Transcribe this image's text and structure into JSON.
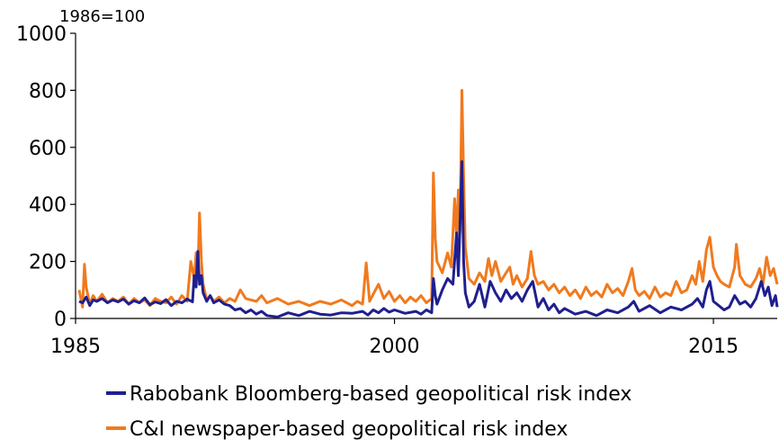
{
  "chart_data": {
    "type": "line",
    "unit_label": "1986=100",
    "ylim": [
      0,
      1000
    ],
    "xlim": [
      1985,
      2018
    ],
    "yticks": [
      "0",
      "200",
      "400",
      "600",
      "800",
      "1000"
    ],
    "ytick_values": [
      0,
      200,
      400,
      600,
      800,
      1000
    ],
    "xticks": [
      "1985",
      "2000",
      "2015"
    ],
    "xtick_values": [
      1985,
      2000,
      2015
    ],
    "grid": false,
    "legend_position": "bottom",
    "series": [
      {
        "name": "Rabobank Bloomberg-based geopolitical risk index",
        "color": "#1F1F8F",
        "points": [
          [
            1985.17,
            60
          ],
          [
            1985.33,
            55
          ],
          [
            1985.5,
            75
          ],
          [
            1985.67,
            45
          ],
          [
            1985.83,
            65
          ],
          [
            1986.0,
            60
          ],
          [
            1986.25,
            70
          ],
          [
            1986.5,
            55
          ],
          [
            1986.75,
            65
          ],
          [
            1987.0,
            58
          ],
          [
            1987.25,
            68
          ],
          [
            1987.5,
            50
          ],
          [
            1987.75,
            62
          ],
          [
            1988.0,
            55
          ],
          [
            1988.25,
            72
          ],
          [
            1988.5,
            48
          ],
          [
            1988.75,
            58
          ],
          [
            1989.0,
            52
          ],
          [
            1989.25,
            66
          ],
          [
            1989.5,
            45
          ],
          [
            1989.75,
            60
          ],
          [
            1990.0,
            55
          ],
          [
            1990.25,
            68
          ],
          [
            1990.5,
            58
          ],
          [
            1990.58,
            150
          ],
          [
            1990.67,
            110
          ],
          [
            1990.75,
            235
          ],
          [
            1990.83,
            120
          ],
          [
            1990.92,
            150
          ],
          [
            1991.0,
            90
          ],
          [
            1991.17,
            60
          ],
          [
            1991.33,
            80
          ],
          [
            1991.5,
            55
          ],
          [
            1991.75,
            65
          ],
          [
            1992.0,
            50
          ],
          [
            1992.25,
            45
          ],
          [
            1992.5,
            30
          ],
          [
            1992.75,
            35
          ],
          [
            1993.0,
            20
          ],
          [
            1993.25,
            30
          ],
          [
            1993.5,
            15
          ],
          [
            1993.75,
            25
          ],
          [
            1994.0,
            10
          ],
          [
            1994.5,
            5
          ],
          [
            1995.0,
            20
          ],
          [
            1995.5,
            10
          ],
          [
            1996.0,
            25
          ],
          [
            1996.5,
            15
          ],
          [
            1997.0,
            12
          ],
          [
            1997.5,
            20
          ],
          [
            1998.0,
            18
          ],
          [
            1998.5,
            25
          ],
          [
            1998.75,
            12
          ],
          [
            1999.0,
            30
          ],
          [
            1999.25,
            20
          ],
          [
            1999.5,
            35
          ],
          [
            1999.75,
            22
          ],
          [
            2000.0,
            30
          ],
          [
            2000.5,
            18
          ],
          [
            2001.0,
            25
          ],
          [
            2001.25,
            15
          ],
          [
            2001.5,
            30
          ],
          [
            2001.75,
            20
          ],
          [
            2001.83,
            140
          ],
          [
            2001.92,
            80
          ],
          [
            2002.0,
            50
          ],
          [
            2002.25,
            100
          ],
          [
            2002.5,
            140
          ],
          [
            2002.75,
            120
          ],
          [
            2002.92,
            300
          ],
          [
            2003.0,
            150
          ],
          [
            2003.08,
            320
          ],
          [
            2003.17,
            550
          ],
          [
            2003.25,
            200
          ],
          [
            2003.33,
            90
          ],
          [
            2003.5,
            40
          ],
          [
            2003.75,
            60
          ],
          [
            2004.0,
            120
          ],
          [
            2004.25,
            40
          ],
          [
            2004.5,
            130
          ],
          [
            2004.75,
            90
          ],
          [
            2005.0,
            60
          ],
          [
            2005.25,
            100
          ],
          [
            2005.5,
            70
          ],
          [
            2005.75,
            90
          ],
          [
            2006.0,
            60
          ],
          [
            2006.25,
            100
          ],
          [
            2006.5,
            130
          ],
          [
            2006.75,
            40
          ],
          [
            2007.0,
            70
          ],
          [
            2007.25,
            30
          ],
          [
            2007.5,
            50
          ],
          [
            2007.75,
            20
          ],
          [
            2008.0,
            35
          ],
          [
            2008.5,
            15
          ],
          [
            2009.0,
            25
          ],
          [
            2009.5,
            10
          ],
          [
            2010.0,
            30
          ],
          [
            2010.5,
            20
          ],
          [
            2011.0,
            40
          ],
          [
            2011.25,
            60
          ],
          [
            2011.5,
            25
          ],
          [
            2012.0,
            45
          ],
          [
            2012.5,
            20
          ],
          [
            2013.0,
            40
          ],
          [
            2013.5,
            30
          ],
          [
            2014.0,
            50
          ],
          [
            2014.25,
            70
          ],
          [
            2014.5,
            40
          ],
          [
            2014.67,
            100
          ],
          [
            2014.83,
            130
          ],
          [
            2015.0,
            60
          ],
          [
            2015.25,
            45
          ],
          [
            2015.5,
            30
          ],
          [
            2015.75,
            40
          ],
          [
            2016.0,
            80
          ],
          [
            2016.25,
            50
          ],
          [
            2016.5,
            60
          ],
          [
            2016.75,
            40
          ],
          [
            2017.0,
            70
          ],
          [
            2017.25,
            130
          ],
          [
            2017.42,
            80
          ],
          [
            2017.58,
            110
          ],
          [
            2017.75,
            45
          ],
          [
            2017.92,
            80
          ],
          [
            2018.0,
            40
          ]
        ]
      },
      {
        "name": "C&I newspaper-based geopolitical risk index",
        "color": "#F07A1E",
        "points": [
          [
            1985.17,
            100
          ],
          [
            1985.33,
            40
          ],
          [
            1985.42,
            190
          ],
          [
            1985.5,
            110
          ],
          [
            1985.67,
            50
          ],
          [
            1985.83,
            80
          ],
          [
            1986.0,
            60
          ],
          [
            1986.25,
            85
          ],
          [
            1986.5,
            55
          ],
          [
            1986.75,
            70
          ],
          [
            1987.0,
            60
          ],
          [
            1987.25,
            75
          ],
          [
            1987.5,
            50
          ],
          [
            1987.75,
            70
          ],
          [
            1988.0,
            55
          ],
          [
            1988.25,
            65
          ],
          [
            1988.5,
            45
          ],
          [
            1988.75,
            70
          ],
          [
            1989.0,
            60
          ],
          [
            1989.25,
            55
          ],
          [
            1989.5,
            75
          ],
          [
            1989.75,
            50
          ],
          [
            1990.0,
            80
          ],
          [
            1990.25,
            60
          ],
          [
            1990.42,
            200
          ],
          [
            1990.58,
            140
          ],
          [
            1990.67,
            230
          ],
          [
            1990.75,
            150
          ],
          [
            1990.83,
            370
          ],
          [
            1990.92,
            200
          ],
          [
            1991.0,
            120
          ],
          [
            1991.17,
            65
          ],
          [
            1991.33,
            80
          ],
          [
            1991.5,
            60
          ],
          [
            1991.75,
            75
          ],
          [
            1992.0,
            55
          ],
          [
            1992.25,
            70
          ],
          [
            1992.5,
            60
          ],
          [
            1992.75,
            100
          ],
          [
            1993.0,
            70
          ],
          [
            1993.25,
            65
          ],
          [
            1993.5,
            60
          ],
          [
            1993.75,
            80
          ],
          [
            1994.0,
            55
          ],
          [
            1994.5,
            70
          ],
          [
            1995.0,
            50
          ],
          [
            1995.5,
            60
          ],
          [
            1996.0,
            45
          ],
          [
            1996.5,
            60
          ],
          [
            1997.0,
            50
          ],
          [
            1997.5,
            65
          ],
          [
            1998.0,
            45
          ],
          [
            1998.25,
            60
          ],
          [
            1998.5,
            50
          ],
          [
            1998.67,
            195
          ],
          [
            1998.83,
            60
          ],
          [
            1999.0,
            85
          ],
          [
            1999.25,
            120
          ],
          [
            1999.5,
            70
          ],
          [
            1999.75,
            95
          ],
          [
            2000.0,
            60
          ],
          [
            2000.25,
            80
          ],
          [
            2000.5,
            55
          ],
          [
            2000.75,
            75
          ],
          [
            2001.0,
            60
          ],
          [
            2001.25,
            80
          ],
          [
            2001.5,
            55
          ],
          [
            2001.75,
            70
          ],
          [
            2001.83,
            510
          ],
          [
            2001.92,
            280
          ],
          [
            2002.0,
            200
          ],
          [
            2002.25,
            160
          ],
          [
            2002.5,
            230
          ],
          [
            2002.67,
            180
          ],
          [
            2002.83,
            420
          ],
          [
            2002.92,
            280
          ],
          [
            2003.0,
            450
          ],
          [
            2003.08,
            300
          ],
          [
            2003.17,
            800
          ],
          [
            2003.25,
            500
          ],
          [
            2003.33,
            250
          ],
          [
            2003.5,
            140
          ],
          [
            2003.75,
            120
          ],
          [
            2004.0,
            160
          ],
          [
            2004.25,
            130
          ],
          [
            2004.42,
            210
          ],
          [
            2004.58,
            150
          ],
          [
            2004.75,
            200
          ],
          [
            2005.0,
            130
          ],
          [
            2005.25,
            160
          ],
          [
            2005.42,
            180
          ],
          [
            2005.58,
            120
          ],
          [
            2005.75,
            150
          ],
          [
            2006.0,
            110
          ],
          [
            2006.25,
            140
          ],
          [
            2006.42,
            235
          ],
          [
            2006.58,
            150
          ],
          [
            2006.75,
            120
          ],
          [
            2007.0,
            130
          ],
          [
            2007.25,
            100
          ],
          [
            2007.5,
            120
          ],
          [
            2007.75,
            90
          ],
          [
            2008.0,
            110
          ],
          [
            2008.25,
            80
          ],
          [
            2008.5,
            100
          ],
          [
            2008.75,
            70
          ],
          [
            2009.0,
            110
          ],
          [
            2009.25,
            80
          ],
          [
            2009.5,
            95
          ],
          [
            2009.75,
            75
          ],
          [
            2010.0,
            120
          ],
          [
            2010.25,
            90
          ],
          [
            2010.5,
            105
          ],
          [
            2010.75,
            80
          ],
          [
            2011.0,
            130
          ],
          [
            2011.17,
            175
          ],
          [
            2011.33,
            100
          ],
          [
            2011.5,
            80
          ],
          [
            2011.75,
            95
          ],
          [
            2012.0,
            70
          ],
          [
            2012.25,
            110
          ],
          [
            2012.5,
            75
          ],
          [
            2012.75,
            90
          ],
          [
            2013.0,
            80
          ],
          [
            2013.25,
            130
          ],
          [
            2013.5,
            90
          ],
          [
            2013.75,
            100
          ],
          [
            2014.0,
            150
          ],
          [
            2014.17,
            120
          ],
          [
            2014.33,
            200
          ],
          [
            2014.5,
            130
          ],
          [
            2014.67,
            240
          ],
          [
            2014.83,
            285
          ],
          [
            2015.0,
            180
          ],
          [
            2015.17,
            150
          ],
          [
            2015.33,
            130
          ],
          [
            2015.5,
            120
          ],
          [
            2015.75,
            110
          ],
          [
            2016.0,
            180
          ],
          [
            2016.08,
            260
          ],
          [
            2016.25,
            150
          ],
          [
            2016.5,
            120
          ],
          [
            2016.75,
            110
          ],
          [
            2017.0,
            140
          ],
          [
            2017.17,
            175
          ],
          [
            2017.33,
            120
          ],
          [
            2017.5,
            215
          ],
          [
            2017.67,
            150
          ],
          [
            2017.83,
            175
          ],
          [
            2018.0,
            120
          ]
        ]
      }
    ]
  }
}
